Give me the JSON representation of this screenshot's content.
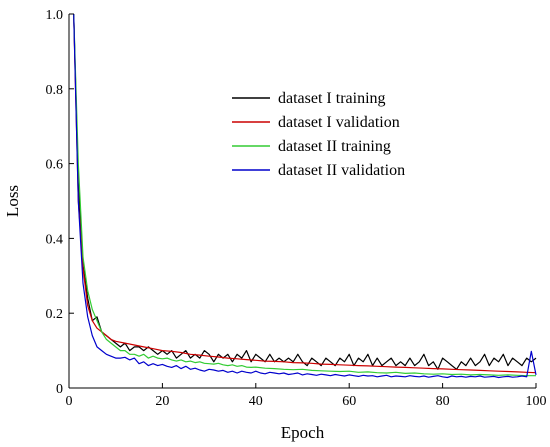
{
  "chart_data": {
    "type": "line",
    "xlabel": "Epoch",
    "ylabel": "Loss",
    "xlim": [
      0,
      100
    ],
    "ylim": [
      0,
      1.0
    ],
    "xticks": [
      0,
      20,
      40,
      60,
      80,
      100
    ],
    "yticks": [
      0,
      0.2,
      0.4,
      0.6,
      0.8,
      1.0
    ],
    "xtick_labels": [
      "0",
      "20",
      "40",
      "60",
      "80",
      "100"
    ],
    "ytick_labels": [
      "0",
      "0.2",
      "0.4",
      "0.6",
      "0.8",
      "1.0"
    ],
    "grid": false,
    "legend_position": "upper-right",
    "series": [
      {
        "name": "dataset I training",
        "color": "#000000",
        "x": [
          1,
          2,
          3,
          4,
          5,
          6,
          7,
          8,
          9,
          10,
          11,
          12,
          13,
          14,
          15,
          16,
          17,
          18,
          19,
          20,
          21,
          22,
          23,
          24,
          25,
          26,
          27,
          28,
          29,
          30,
          31,
          32,
          33,
          34,
          35,
          36,
          37,
          38,
          39,
          40,
          41,
          42,
          43,
          44,
          45,
          46,
          47,
          48,
          49,
          50,
          51,
          52,
          53,
          54,
          55,
          56,
          57,
          58,
          59,
          60,
          61,
          62,
          63,
          64,
          65,
          66,
          67,
          68,
          69,
          70,
          71,
          72,
          73,
          74,
          75,
          76,
          77,
          78,
          79,
          80,
          81,
          82,
          83,
          84,
          85,
          86,
          87,
          88,
          89,
          90,
          91,
          92,
          93,
          94,
          95,
          96,
          97,
          98,
          99,
          100
        ],
        "y": [
          1.0,
          0.55,
          0.33,
          0.24,
          0.18,
          0.19,
          0.15,
          0.14,
          0.13,
          0.12,
          0.11,
          0.12,
          0.1,
          0.11,
          0.11,
          0.1,
          0.11,
          0.1,
          0.09,
          0.1,
          0.09,
          0.1,
          0.08,
          0.09,
          0.1,
          0.08,
          0.09,
          0.08,
          0.1,
          0.09,
          0.07,
          0.09,
          0.08,
          0.09,
          0.07,
          0.09,
          0.08,
          0.1,
          0.07,
          0.09,
          0.08,
          0.07,
          0.09,
          0.07,
          0.08,
          0.07,
          0.08,
          0.07,
          0.09,
          0.07,
          0.06,
          0.08,
          0.07,
          0.06,
          0.08,
          0.07,
          0.06,
          0.08,
          0.07,
          0.09,
          0.06,
          0.08,
          0.07,
          0.09,
          0.06,
          0.08,
          0.06,
          0.07,
          0.08,
          0.06,
          0.07,
          0.06,
          0.08,
          0.06,
          0.07,
          0.09,
          0.06,
          0.07,
          0.05,
          0.08,
          0.07,
          0.06,
          0.05,
          0.07,
          0.06,
          0.08,
          0.06,
          0.07,
          0.09,
          0.06,
          0.08,
          0.07,
          0.09,
          0.06,
          0.08,
          0.07,
          0.06,
          0.08,
          0.07,
          0.08
        ]
      },
      {
        "name": "dataset I validation",
        "color": "#cc0000",
        "x": [
          1,
          2,
          3,
          4,
          5,
          6,
          7,
          8,
          9,
          10,
          12,
          14,
          16,
          18,
          20,
          22,
          24,
          26,
          28,
          30,
          32,
          34,
          36,
          38,
          40,
          42,
          44,
          46,
          48,
          50,
          52,
          54,
          56,
          58,
          60,
          62,
          64,
          66,
          68,
          70,
          72,
          74,
          76,
          78,
          80,
          82,
          84,
          86,
          88,
          90,
          92,
          94,
          96,
          98,
          100
        ],
        "y": [
          1.0,
          0.5,
          0.32,
          0.22,
          0.18,
          0.16,
          0.15,
          0.14,
          0.13,
          0.125,
          0.12,
          0.115,
          0.11,
          0.105,
          0.1,
          0.098,
          0.095,
          0.09,
          0.088,
          0.085,
          0.083,
          0.08,
          0.078,
          0.076,
          0.074,
          0.072,
          0.071,
          0.07,
          0.068,
          0.067,
          0.066,
          0.064,
          0.063,
          0.062,
          0.061,
          0.06,
          0.059,
          0.058,
          0.057,
          0.056,
          0.055,
          0.054,
          0.053,
          0.052,
          0.051,
          0.05,
          0.049,
          0.048,
          0.047,
          0.046,
          0.045,
          0.044,
          0.043,
          0.042,
          0.041
        ]
      },
      {
        "name": "dataset II training",
        "color": "#33cc33",
        "x": [
          1,
          2,
          3,
          4,
          5,
          6,
          7,
          8,
          9,
          10,
          11,
          12,
          13,
          14,
          15,
          16,
          17,
          18,
          19,
          20,
          21,
          22,
          23,
          24,
          25,
          26,
          27,
          28,
          29,
          30,
          31,
          32,
          33,
          34,
          35,
          36,
          37,
          38,
          39,
          40,
          42,
          44,
          46,
          48,
          50,
          52,
          54,
          56,
          58,
          60,
          62,
          64,
          66,
          68,
          70,
          72,
          74,
          76,
          78,
          80,
          82,
          84,
          86,
          88,
          90,
          92,
          94,
          96,
          98,
          100
        ],
        "y": [
          1.0,
          0.6,
          0.35,
          0.26,
          0.21,
          0.18,
          0.15,
          0.13,
          0.12,
          0.11,
          0.1,
          0.1,
          0.09,
          0.09,
          0.085,
          0.09,
          0.08,
          0.085,
          0.08,
          0.078,
          0.08,
          0.075,
          0.072,
          0.075,
          0.07,
          0.072,
          0.068,
          0.07,
          0.066,
          0.065,
          0.064,
          0.066,
          0.062,
          0.06,
          0.062,
          0.058,
          0.06,
          0.056,
          0.055,
          0.056,
          0.053,
          0.052,
          0.05,
          0.049,
          0.05,
          0.047,
          0.046,
          0.045,
          0.044,
          0.045,
          0.042,
          0.043,
          0.041,
          0.04,
          0.042,
          0.039,
          0.04,
          0.038,
          0.037,
          0.038,
          0.036,
          0.037,
          0.035,
          0.036,
          0.035,
          0.034,
          0.035,
          0.034,
          0.033,
          0.033
        ]
      },
      {
        "name": "dataset II validation",
        "color": "#0000cc",
        "x": [
          1,
          2,
          3,
          4,
          5,
          6,
          7,
          8,
          9,
          10,
          11,
          12,
          13,
          14,
          15,
          16,
          17,
          18,
          19,
          20,
          21,
          22,
          23,
          24,
          25,
          26,
          27,
          28,
          29,
          30,
          31,
          32,
          33,
          34,
          35,
          36,
          37,
          38,
          39,
          40,
          41,
          42,
          43,
          44,
          45,
          46,
          47,
          48,
          49,
          50,
          51,
          52,
          53,
          54,
          55,
          56,
          57,
          58,
          59,
          60,
          61,
          62,
          63,
          64,
          65,
          66,
          67,
          68,
          69,
          70,
          71,
          72,
          73,
          74,
          75,
          76,
          77,
          78,
          79,
          80,
          81,
          82,
          83,
          84,
          85,
          86,
          87,
          88,
          89,
          90,
          91,
          92,
          93,
          94,
          95,
          96,
          97,
          98,
          99,
          100
        ],
        "y": [
          1.0,
          0.5,
          0.28,
          0.19,
          0.14,
          0.11,
          0.1,
          0.09,
          0.085,
          0.08,
          0.08,
          0.082,
          0.075,
          0.08,
          0.065,
          0.07,
          0.06,
          0.065,
          0.06,
          0.063,
          0.058,
          0.055,
          0.06,
          0.052,
          0.058,
          0.05,
          0.053,
          0.048,
          0.045,
          0.05,
          0.048,
          0.045,
          0.047,
          0.042,
          0.045,
          0.04,
          0.045,
          0.042,
          0.04,
          0.045,
          0.04,
          0.038,
          0.042,
          0.04,
          0.038,
          0.04,
          0.036,
          0.038,
          0.04,
          0.035,
          0.038,
          0.036,
          0.034,
          0.037,
          0.035,
          0.033,
          0.036,
          0.034,
          0.032,
          0.035,
          0.033,
          0.031,
          0.034,
          0.032,
          0.033,
          0.03,
          0.032,
          0.034,
          0.03,
          0.032,
          0.031,
          0.03,
          0.033,
          0.031,
          0.03,
          0.032,
          0.029,
          0.031,
          0.033,
          0.03,
          0.028,
          0.032,
          0.03,
          0.031,
          0.029,
          0.031,
          0.03,
          0.032,
          0.029,
          0.03,
          0.031,
          0.028,
          0.03,
          0.031,
          0.029,
          0.03,
          0.032,
          0.03,
          0.098,
          0.035
        ]
      }
    ]
  }
}
